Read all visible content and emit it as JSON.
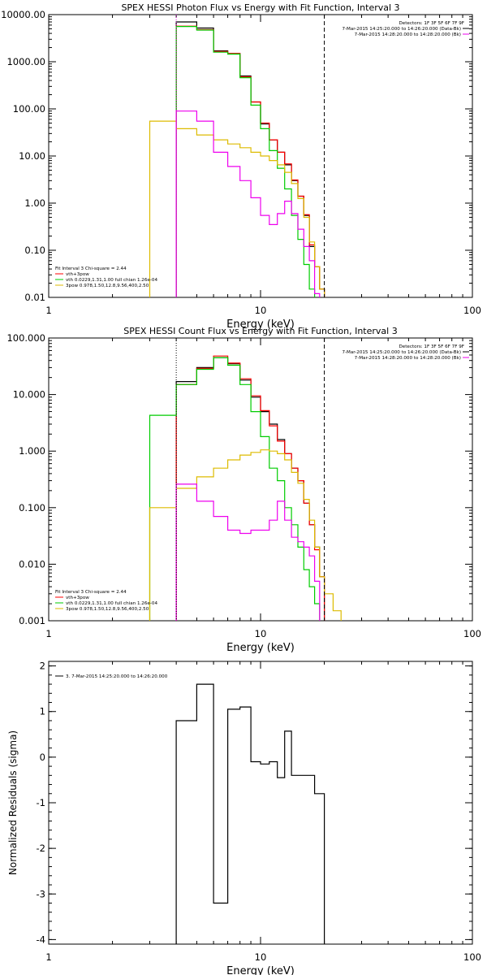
{
  "chart_data": [
    {
      "type": "line",
      "title": "SPEX HESSI Photon Flux vs Energy with Fit Function, Interval 3",
      "xlabel": "Energy (keV)",
      "ylabel": "",
      "xscale": "log",
      "yscale": "log",
      "xlim": [
        1,
        100
      ],
      "ylim": [
        0.01,
        10000
      ],
      "x_ticks": [
        {
          "v": 1,
          "label": "1"
        },
        {
          "v": 10,
          "label": "10"
        },
        {
          "v": 100,
          "label": "100"
        }
      ],
      "y_ticks": [
        {
          "v": 0.01,
          "label": "0.01"
        },
        {
          "v": 0.1,
          "label": "0.10"
        },
        {
          "v": 1,
          "label": "1.00"
        },
        {
          "v": 10,
          "label": "10.00"
        },
        {
          "v": 100,
          "label": "100.00"
        },
        {
          "v": 1000,
          "label": "1000.00"
        },
        {
          "v": 10000,
          "label": "10000.00"
        }
      ],
      "energy_bins": [
        3,
        4,
        5,
        6,
        7,
        8,
        9,
        10,
        11,
        12,
        13,
        14,
        15,
        16,
        17,
        18,
        19,
        20,
        22,
        24,
        26
      ],
      "colors": {
        "data": "#000000",
        "total": "#ff0000",
        "vth": "#00cc00",
        "3pow": "#ddbb00",
        "bk": "#ee00ee"
      },
      "series": [
        {
          "key": "data",
          "values": [
            null,
            7000,
            5200,
            1700,
            1500,
            500,
            140,
            48,
            22,
            12,
            6.5,
            3,
            1.4,
            0.55,
            0.12,
            0.045,
            0.015,
            null,
            null,
            null
          ]
        },
        {
          "key": "total",
          "values": [
            null,
            5700,
            4800,
            1650,
            1500,
            480,
            140,
            50,
            22,
            12,
            6.8,
            3.1,
            1.4,
            0.57,
            0.13,
            0.045,
            0.015,
            null,
            null,
            null
          ]
        },
        {
          "key": "vth",
          "values": [
            null,
            5600,
            4700,
            1600,
            1450,
            460,
            120,
            38,
            13,
            5.5,
            2,
            0.55,
            0.17,
            0.05,
            0.015,
            null,
            null,
            null,
            null,
            null
          ]
        },
        {
          "key": "3pow",
          "values": [
            55,
            38,
            28,
            22,
            18,
            15,
            12,
            10,
            8,
            6.5,
            4.5,
            2.6,
            1.25,
            0.5,
            0.15,
            0.045,
            0.015,
            null,
            null,
            null
          ]
        },
        {
          "key": "bk",
          "values": [
            null,
            90,
            55,
            12,
            6,
            3,
            1.3,
            0.55,
            0.35,
            0.6,
            1.1,
            0.6,
            0.28,
            0.12,
            0.06,
            0.012,
            null,
            null,
            null,
            null
          ]
        }
      ],
      "vlines": [
        {
          "x": 4,
          "style": "dotted",
          "color": "#ee00ee"
        },
        {
          "x": 20,
          "style": "dashed",
          "color": "#000000"
        }
      ],
      "info": {
        "detectors": "Detectors: 1F 3F 5F 6F 7F 9F",
        "lines": [
          {
            "text": "7-Mar-2015 14:25:20.000 to 14:26:20.000 (Data-Bk)",
            "color": "#000000"
          },
          {
            "text": "7-Mar-2015 14:28:20.000 to 14:28:20.000 (Bk)",
            "color": "#ee00ee"
          }
        ]
      },
      "legend": {
        "header": "Fit Interval 3   Chi-square = 2.44",
        "entries": [
          {
            "text": "vth+3pow",
            "color": "#ff0000"
          },
          {
            "text": "vth 0.0229,1.31,1.00  full chian 1.26e-04",
            "color": "#00cc00"
          },
          {
            "text": "3pow 0.978,1.50,12.8,9.56,400,2.50",
            "color": "#ddbb00"
          }
        ]
      }
    },
    {
      "type": "line",
      "title": "SPEX HESSI Count Flux vs Energy with Fit Function, Interval 3",
      "xlabel": "Energy (keV)",
      "ylabel": "",
      "xscale": "log",
      "yscale": "log",
      "xlim": [
        1,
        100
      ],
      "ylim": [
        0.001,
        100
      ],
      "x_ticks": [
        {
          "v": 1,
          "label": "1"
        },
        {
          "v": 10,
          "label": "10"
        },
        {
          "v": 100,
          "label": "100"
        }
      ],
      "y_ticks": [
        {
          "v": 0.001,
          "label": "0.001"
        },
        {
          "v": 0.01,
          "label": "0.010"
        },
        {
          "v": 0.1,
          "label": "0.100"
        },
        {
          "v": 1,
          "label": "1.000"
        },
        {
          "v": 10,
          "label": "10.000"
        },
        {
          "v": 100,
          "label": "100.000"
        }
      ],
      "energy_bins": [
        3,
        4,
        5,
        6,
        7,
        8,
        9,
        10,
        11,
        12,
        13,
        14,
        15,
        16,
        17,
        18,
        19,
        20,
        22,
        24,
        26
      ],
      "colors": {
        "data": "#000000",
        "total": "#ff0000",
        "vth": "#00cc00",
        "3pow": "#ddbb00",
        "bk": "#ee00ee"
      },
      "series": [
        {
          "key": "data",
          "values": [
            null,
            17,
            30,
            45,
            35,
            18,
            9,
            5,
            3,
            1.6,
            0.9,
            0.5,
            0.3,
            0.12,
            0.05,
            0.02,
            0.006,
            null,
            null,
            null
          ]
        },
        {
          "key": "total",
          "values": [
            null,
            15,
            29,
            48,
            36,
            19,
            9.5,
            5.2,
            2.8,
            1.5,
            0.9,
            0.5,
            0.3,
            0.12,
            0.05,
            0.018,
            0.006,
            null,
            null,
            null
          ]
        },
        {
          "key": "vth",
          "values": [
            4.3,
            15,
            28,
            45,
            33,
            15,
            5,
            1.8,
            0.5,
            0.3,
            0.1,
            0.05,
            0.02,
            0.008,
            0.004,
            0.002,
            null,
            null,
            null,
            null
          ]
        },
        {
          "key": "3pow",
          "values": [
            0.1,
            0.22,
            0.35,
            0.5,
            0.7,
            0.85,
            0.95,
            1.05,
            1.0,
            0.9,
            0.7,
            0.42,
            0.27,
            0.14,
            0.06,
            0.02,
            0.006,
            0.003,
            0.0015,
            null
          ]
        },
        {
          "key": "bk",
          "values": [
            null,
            0.26,
            0.13,
            0.07,
            0.04,
            0.035,
            0.04,
            0.04,
            0.06,
            0.13,
            0.06,
            0.03,
            0.025,
            0.02,
            0.014,
            0.005,
            null,
            null,
            null,
            null
          ]
        }
      ],
      "vlines": [
        {
          "x": 4,
          "style": "dotted",
          "color": "#000000"
        },
        {
          "x": 20,
          "style": "dashed",
          "color": "#000000"
        }
      ],
      "info": {
        "detectors": "Detectors: 1F 3F 5F 6F 7F 9F",
        "lines": [
          {
            "text": "7-Mar-2015 14:25:20.000 to 14:26:20.000 (Data-Bk)",
            "color": "#000000"
          },
          {
            "text": "7-Mar-2015 14:28:20.000 to 14:28:20.000 (Bk)",
            "color": "#ee00ee"
          }
        ]
      },
      "legend": {
        "header": "Fit Interval 3   Chi-square = 2.44",
        "entries": [
          {
            "text": "vth+3pow",
            "color": "#ff0000"
          },
          {
            "text": "vth 0.0229,1.31,1.00  full chian 1.26e-04",
            "color": "#00cc00"
          },
          {
            "text": "3pow 0.978,1.50,12.8,9.56,400,2.50",
            "color": "#ddbb00"
          }
        ]
      }
    },
    {
      "type": "line",
      "title": "",
      "xlabel": "Energy (keV)",
      "ylabel": "Normalized Residuals (sigma)",
      "xscale": "log",
      "yscale": "linear",
      "xlim": [
        1,
        100
      ],
      "ylim": [
        -4.1,
        2.1
      ],
      "x_ticks": [
        {
          "v": 1,
          "label": "1"
        },
        {
          "v": 10,
          "label": "10"
        },
        {
          "v": 100,
          "label": "100"
        }
      ],
      "y_ticks": [
        {
          "v": 2,
          "label": "2"
        },
        {
          "v": 1,
          "label": "1"
        },
        {
          "v": 0,
          "label": "0"
        },
        {
          "v": -1,
          "label": "-1"
        },
        {
          "v": -2,
          "label": "-2"
        },
        {
          "v": -3,
          "label": "-3"
        },
        {
          "v": -4,
          "label": "-4"
        }
      ],
      "energy_bins": [
        4,
        5,
        6,
        7,
        8,
        9,
        10,
        11,
        12,
        13,
        14,
        15,
        16,
        17,
        18,
        19,
        20
      ],
      "colors": {
        "data": "#000000"
      },
      "series": [
        {
          "key": "data",
          "values": [
            0.8,
            1.6,
            -3.2,
            1.05,
            1.1,
            -0.1,
            -0.15,
            -0.1,
            -0.45,
            0.57,
            -0.4,
            -0.4,
            -0.4,
            -0.4,
            -0.8,
            -0.8
          ]
        }
      ],
      "vlines": [],
      "legend": {
        "header": "",
        "entries": [
          {
            "text": "3.  7-Mar-2015 14:25:20.000 to 14:26:20.000",
            "color": "#000000"
          }
        ]
      }
    }
  ]
}
